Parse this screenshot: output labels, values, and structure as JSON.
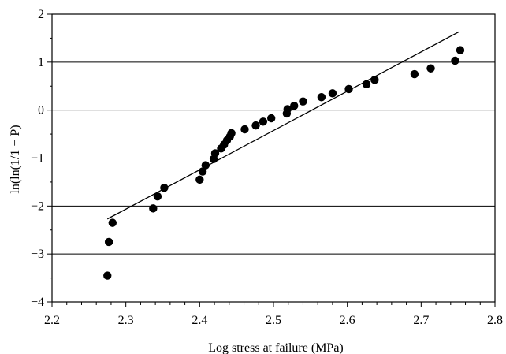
{
  "chart_data": {
    "type": "scatter",
    "title": "",
    "xlabel": "Log stress at failure (MPa)",
    "ylabel": "ln(ln(1/1 − P)",
    "xlim": [
      2.2,
      2.8
    ],
    "ylim": [
      -4,
      2
    ],
    "x_ticks": [
      2.2,
      2.3,
      2.4,
      2.5,
      2.6,
      2.7,
      2.8
    ],
    "x_tick_labels": [
      "2.2",
      "2.3",
      "2.4",
      "2.5",
      "2.6",
      "2.7",
      "2.8"
    ],
    "y_ticks": [
      -4,
      -3,
      -2,
      -1,
      0,
      1,
      2
    ],
    "y_tick_labels": [
      "−4",
      "−3",
      "−2",
      "−1",
      "0",
      "1",
      "2"
    ],
    "grid": "horizontal",
    "series": [
      {
        "type": "scatter",
        "color": "#000000",
        "points": [
          [
            2.275,
            -3.45
          ],
          [
            2.277,
            -2.75
          ],
          [
            2.282,
            -2.35
          ],
          [
            2.337,
            -2.05
          ],
          [
            2.343,
            -1.8
          ],
          [
            2.352,
            -1.62
          ],
          [
            2.4,
            -1.45
          ],
          [
            2.404,
            -1.28
          ],
          [
            2.408,
            -1.15
          ],
          [
            2.419,
            -1.02
          ],
          [
            2.421,
            -0.9
          ],
          [
            2.429,
            -0.8
          ],
          [
            2.433,
            -0.72
          ],
          [
            2.437,
            -0.63
          ],
          [
            2.441,
            -0.55
          ],
          [
            2.443,
            -0.48
          ],
          [
            2.461,
            -0.4
          ],
          [
            2.476,
            -0.32
          ],
          [
            2.486,
            -0.24
          ],
          [
            2.497,
            -0.17
          ],
          [
            2.518,
            -0.07
          ],
          [
            2.519,
            0.02
          ],
          [
            2.528,
            0.09
          ],
          [
            2.54,
            0.18
          ],
          [
            2.565,
            0.27
          ],
          [
            2.58,
            0.35
          ],
          [
            2.602,
            0.44
          ],
          [
            2.626,
            0.54
          ],
          [
            2.637,
            0.63
          ],
          [
            2.691,
            0.75
          ],
          [
            2.713,
            0.87
          ],
          [
            2.746,
            1.03
          ],
          [
            2.753,
            1.25
          ]
        ]
      },
      {
        "type": "line",
        "color": "#000000",
        "points": [
          [
            2.275,
            -2.27
          ],
          [
            2.752,
            1.64
          ]
        ]
      }
    ]
  }
}
